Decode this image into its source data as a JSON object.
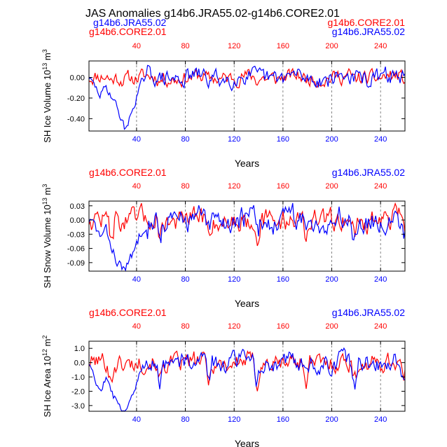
{
  "figure": {
    "title": "JAS Anomalies g14b6.JRA55.02-g14b6.CORE2.01",
    "header_left_top": "g14b6.JRA55.02",
    "header_left_bottom": "g14b6.CORE2.01",
    "header_right_top": "g14b6.CORE2.01",
    "header_right_bottom": "g14b6.JRA55.02"
  },
  "colors": {
    "jra": "#0000ff",
    "core": "#ff0000",
    "axis": "#000000",
    "grid": "#666666"
  },
  "chart_data": [
    {
      "type": "line",
      "ylabel": "SH Ice Volume 10",
      "ylabel_exp": "13",
      "ylabel_unit": " m",
      "ylabel_unit_exp": "3",
      "xlabel": "Years",
      "left_label": "",
      "right_label": "",
      "xlim": [
        1,
        260
      ],
      "ylim": [
        -0.52,
        0.16
      ],
      "yticks": [
        0.0,
        -0.2,
        -0.4
      ],
      "yticklabels": [
        "0.00",
        "-0.20",
        "-0.40"
      ],
      "xticks": [
        40,
        80,
        120,
        160,
        200,
        240
      ],
      "xticklabels": [
        "40",
        "80",
        "120",
        "160",
        "200",
        "240"
      ],
      "vlines": [
        40,
        80,
        120,
        160,
        200,
        240
      ],
      "core": {
        "name": "g14b6.CORE2.01",
        "base": 0.0,
        "amp": 0.06,
        "pdip": -0.03,
        "ramp": 0.015,
        "seed": 11
      },
      "jra": {
        "name": "g14b6.JRA55.02",
        "base": 0.0,
        "amp": 0.07,
        "pdip": -0.03,
        "ramp": 0.02,
        "seed": 29,
        "trough": [
          [
            1,
            0.0
          ],
          [
            5,
            -0.08
          ],
          [
            10,
            -0.17
          ],
          [
            15,
            -0.1
          ],
          [
            20,
            -0.18
          ],
          [
            25,
            -0.32
          ],
          [
            30,
            -0.49
          ],
          [
            33,
            -0.45
          ],
          [
            37,
            -0.3
          ],
          [
            40,
            -0.18
          ],
          [
            44,
            -0.06
          ],
          [
            48,
            0.0
          ]
        ]
      }
    },
    {
      "type": "line",
      "ylabel": "SH Snow Volume 10",
      "ylabel_exp": "13",
      "ylabel_unit": " m",
      "ylabel_unit_exp": "3",
      "xlabel": "Years",
      "left_label": "g14b6.CORE2.01",
      "right_label": "g14b6.JRA55.02",
      "xlim": [
        1,
        260
      ],
      "ylim": [
        -0.108,
        0.04
      ],
      "yticks": [
        0.03,
        0.0,
        -0.03,
        -0.06,
        -0.09
      ],
      "yticklabels": [
        "0.03",
        "0.00",
        "-0.03",
        "-0.06",
        "-0.09"
      ],
      "xticks": [
        40,
        80,
        120,
        160,
        200,
        240
      ],
      "xticklabels": [
        "40",
        "80",
        "120",
        "160",
        "200",
        "240"
      ],
      "vlines": [
        40,
        80,
        120,
        160,
        200,
        240
      ],
      "core": {
        "name": "g14b6.CORE2.01",
        "base": 0.0,
        "amp": 0.02,
        "pdip": -0.03,
        "ramp": 0.004,
        "seed": 47
      },
      "jra": {
        "name": "g14b6.JRA55.02",
        "base": 0.0,
        "amp": 0.022,
        "pdip": -0.03,
        "ramp": 0.005,
        "seed": 83,
        "trough": [
          [
            1,
            0.0
          ],
          [
            5,
            -0.01
          ],
          [
            10,
            -0.035
          ],
          [
            15,
            -0.025
          ],
          [
            20,
            -0.06
          ],
          [
            25,
            -0.09
          ],
          [
            28,
            -0.105
          ],
          [
            32,
            -0.095
          ],
          [
            36,
            -0.08
          ],
          [
            40,
            -0.05
          ],
          [
            44,
            -0.02
          ],
          [
            48,
            0.0
          ]
        ]
      }
    },
    {
      "type": "line",
      "ylabel": "SH Ice Area 10",
      "ylabel_exp": "12",
      "ylabel_unit": " m",
      "ylabel_unit_exp": "2",
      "xlabel": "Years",
      "left_label": "g14b6.CORE2.01",
      "right_label": "g14b6.JRA55.02",
      "xlim": [
        1,
        260
      ],
      "ylim": [
        -3.4,
        1.5
      ],
      "yticks": [
        1.0,
        0.0,
        -1.0,
        -2.0,
        -3.0
      ],
      "yticklabels": [
        "1.0",
        "0.0",
        "-1.0",
        "-2.0",
        "-3.0"
      ],
      "xticks": [
        40,
        80,
        120,
        160,
        200,
        240
      ],
      "xticklabels": [
        "40",
        "80",
        "120",
        "160",
        "200",
        "240"
      ],
      "vlines": [
        40,
        80,
        120,
        160,
        200,
        240
      ],
      "core": {
        "name": "g14b6.CORE2.01",
        "base": 0.0,
        "amp": 0.55,
        "pdip": -1.3,
        "ramp": 0.12,
        "seed": 101
      },
      "jra": {
        "name": "g14b6.JRA55.02",
        "base": 0.0,
        "amp": 0.55,
        "pdip": -1.2,
        "ramp": 0.15,
        "seed": 157,
        "trough": [
          [
            1,
            0.0
          ],
          [
            5,
            -0.6
          ],
          [
            10,
            -1.8
          ],
          [
            15,
            -1.2
          ],
          [
            20,
            -2.2
          ],
          [
            25,
            -2.9
          ],
          [
            30,
            -3.3
          ],
          [
            33,
            -3.0
          ],
          [
            37,
            -2.0
          ],
          [
            40,
            -1.2
          ],
          [
            44,
            -0.4
          ],
          [
            48,
            0.0
          ]
        ]
      }
    }
  ]
}
